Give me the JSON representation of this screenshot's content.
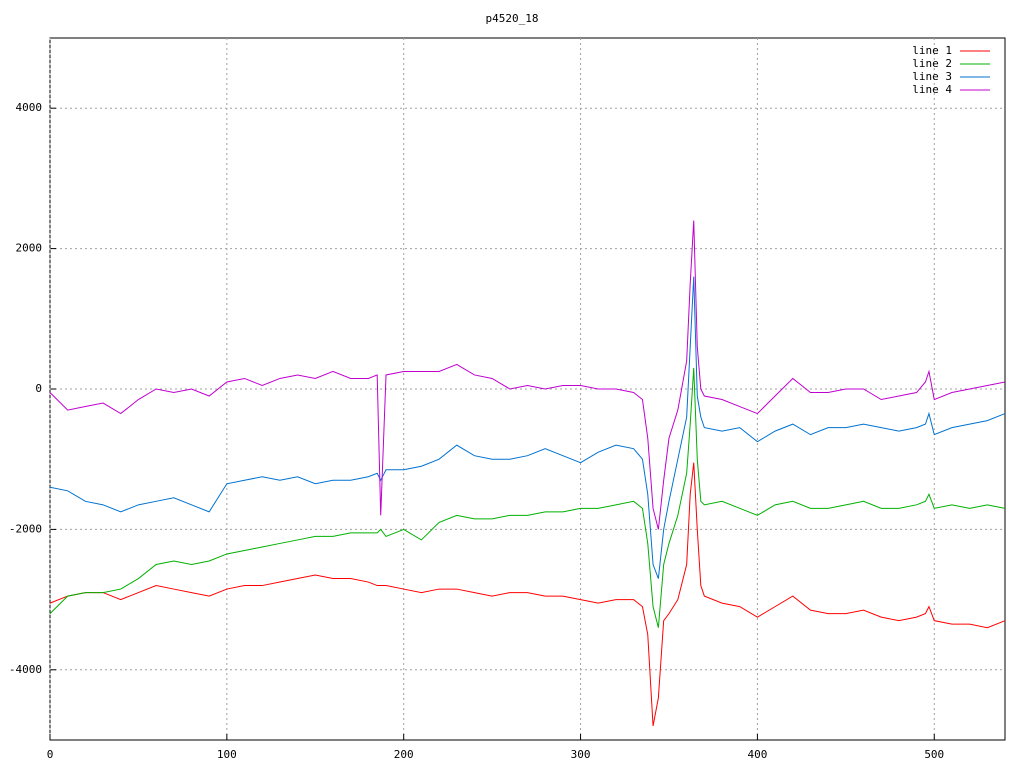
{
  "chart_data": {
    "type": "line",
    "title": "p4520_18",
    "x": [
      0,
      10,
      20,
      30,
      40,
      50,
      60,
      70,
      80,
      90,
      100,
      110,
      120,
      130,
      140,
      150,
      160,
      170,
      180,
      185,
      187,
      190,
      200,
      210,
      220,
      230,
      240,
      250,
      260,
      270,
      280,
      290,
      300,
      310,
      320,
      330,
      335,
      338,
      341,
      344,
      347,
      350,
      355,
      360,
      362,
      364,
      366,
      368,
      370,
      380,
      390,
      400,
      410,
      420,
      430,
      440,
      450,
      460,
      470,
      480,
      490,
      495,
      497,
      500,
      510,
      520,
      530,
      540
    ],
    "series": [
      {
        "name": "line 1",
        "color": "#ff0000",
        "values": [
          -3050,
          -2950,
          -2900,
          -2900,
          -3000,
          -2900,
          -2800,
          -2850,
          -2900,
          -2950,
          -2850,
          -2800,
          -2800,
          -2750,
          -2700,
          -2650,
          -2700,
          -2700,
          -2750,
          -2800,
          -2800,
          -2800,
          -2850,
          -2900,
          -2850,
          -2850,
          -2900,
          -2950,
          -2900,
          -2900,
          -2950,
          -2950,
          -3000,
          -3050,
          -3000,
          -3000,
          -3100,
          -3500,
          -4800,
          -4400,
          -3300,
          -3200,
          -3000,
          -2500,
          -1500,
          -1050,
          -2000,
          -2800,
          -2950,
          -3050,
          -3100,
          -3250,
          -3100,
          -2950,
          -3150,
          -3200,
          -3200,
          -3150,
          -3250,
          -3300,
          -3250,
          -3200,
          -3100,
          -3300,
          -3350,
          -3350,
          -3400,
          -3300
        ]
      },
      {
        "name": "line 2",
        "color": "#00b000",
        "values": [
          -3200,
          -2950,
          -2900,
          -2900,
          -2850,
          -2700,
          -2500,
          -2450,
          -2500,
          -2450,
          -2350,
          -2300,
          -2250,
          -2200,
          -2150,
          -2100,
          -2100,
          -2050,
          -2050,
          -2050,
          -2000,
          -2100,
          -2000,
          -2150,
          -1900,
          -1800,
          -1850,
          -1850,
          -1800,
          -1800,
          -1750,
          -1750,
          -1700,
          -1700,
          -1650,
          -1600,
          -1700,
          -2200,
          -3100,
          -3400,
          -2500,
          -2200,
          -1800,
          -1200,
          -500,
          300,
          -1000,
          -1600,
          -1650,
          -1600,
          -1700,
          -1800,
          -1650,
          -1600,
          -1700,
          -1700,
          -1650,
          -1600,
          -1700,
          -1700,
          -1650,
          -1600,
          -1500,
          -1700,
          -1650,
          -1700,
          -1650,
          -1700
        ]
      },
      {
        "name": "line 3",
        "color": "#0072d0",
        "values": [
          -1400,
          -1450,
          -1600,
          -1650,
          -1750,
          -1650,
          -1600,
          -1550,
          -1650,
          -1750,
          -1350,
          -1300,
          -1250,
          -1300,
          -1250,
          -1350,
          -1300,
          -1300,
          -1250,
          -1200,
          -1300,
          -1150,
          -1150,
          -1100,
          -1000,
          -800,
          -950,
          -1000,
          -1000,
          -950,
          -850,
          -950,
          -1050,
          -900,
          -800,
          -850,
          -1000,
          -1500,
          -2500,
          -2700,
          -2000,
          -1600,
          -1000,
          -400,
          600,
          1600,
          -100,
          -400,
          -550,
          -600,
          -550,
          -750,
          -600,
          -500,
          -650,
          -550,
          -550,
          -500,
          -550,
          -600,
          -550,
          -500,
          -350,
          -650,
          -550,
          -500,
          -450,
          -350
        ]
      },
      {
        "name": "line 4",
        "color": "#c000d0",
        "values": [
          -50,
          -300,
          -250,
          -200,
          -350,
          -150,
          0,
          -50,
          0,
          -100,
          100,
          150,
          50,
          150,
          200,
          150,
          250,
          150,
          150,
          200,
          -1800,
          200,
          250,
          250,
          250,
          350,
          200,
          150,
          0,
          50,
          0,
          50,
          50,
          0,
          0,
          -50,
          -150,
          -700,
          -1700,
          -2000,
          -1300,
          -700,
          -300,
          400,
          1500,
          2400,
          600,
          0,
          -100,
          -150,
          -250,
          -350,
          -100,
          150,
          -50,
          -50,
          0,
          0,
          -150,
          -100,
          -50,
          100,
          250,
          -150,
          -50,
          0,
          50,
          100
        ]
      }
    ],
    "xlim": [
      0,
      540
    ],
    "xticks": [
      0,
      100,
      200,
      300,
      400,
      500
    ],
    "ylim": [
      -5000,
      5000
    ],
    "yticks": [
      -4000,
      -2000,
      0,
      2000,
      4000
    ],
    "grid": true,
    "legend": "top-right"
  }
}
